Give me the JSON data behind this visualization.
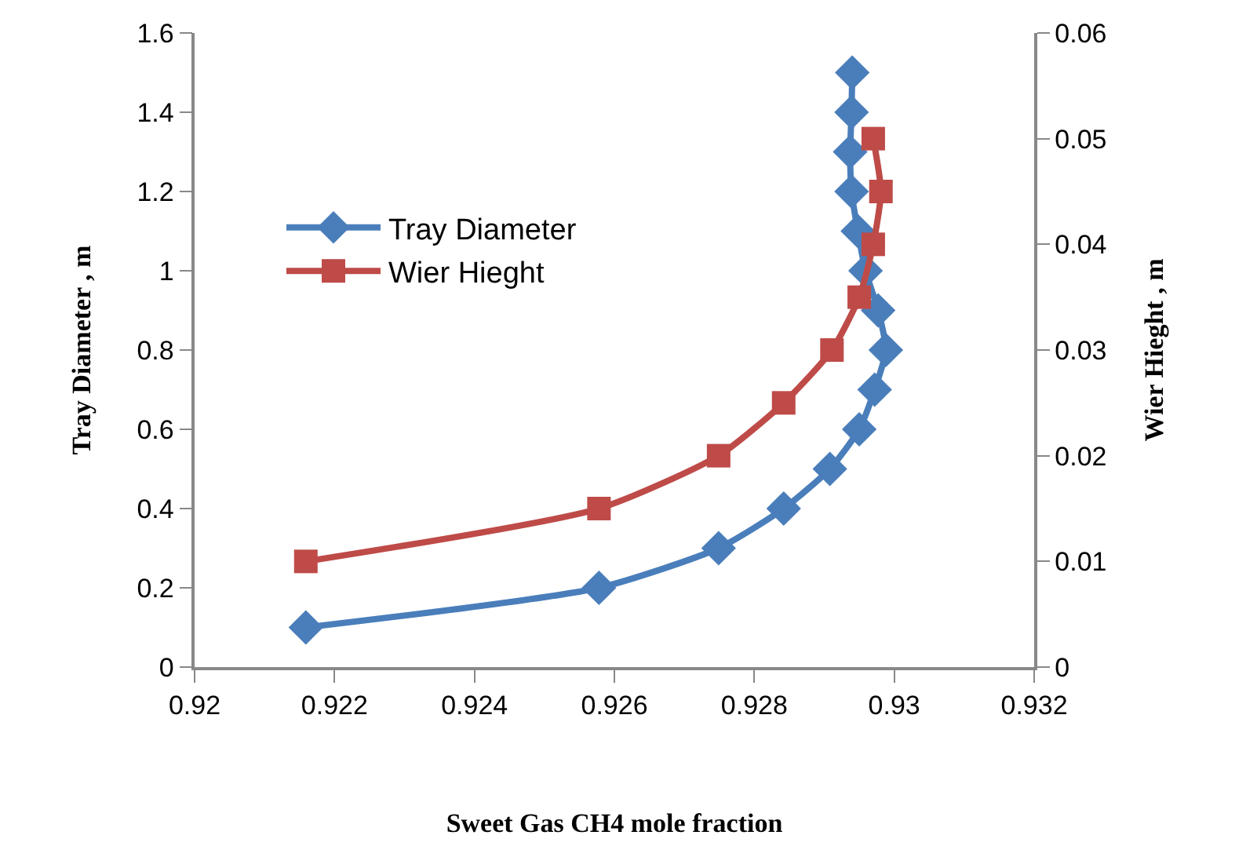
{
  "chart_data": {
    "type": "line",
    "xlabel": "Sweet Gas CH4 mole fraction",
    "ylabel": "Tray Diameter , m",
    "y2label": "Wier Hieght , m",
    "series": [
      {
        "name": "Tray Diameter",
        "color": "#4a7ebb",
        "x": [
          0.92159,
          0.92578,
          0.92749,
          0.92842,
          0.92908,
          0.9295,
          0.92972,
          0.92988,
          0.92977,
          0.92959,
          0.92948,
          0.92939,
          0.92937,
          0.92939,
          0.9294
        ],
        "values": [
          0.1,
          0.2,
          0.3,
          0.4,
          0.5,
          0.6,
          0.7,
          0.8,
          0.9,
          1.0,
          1.1,
          1.2,
          1.3,
          1.4,
          1.5
        ],
        "marker": "diamond"
      },
      {
        "name": "Wier Hieght",
        "color": "#be4b48",
        "axis": "y2",
        "x": [
          0.92159,
          0.92578,
          0.92749,
          0.92842,
          0.92911,
          0.9295,
          0.9297,
          0.92981,
          0.9297
        ],
        "values": [
          0.01,
          0.015,
          0.02,
          0.025,
          0.03,
          0.035,
          0.04,
          0.045,
          0.05
        ],
        "marker": "square"
      }
    ],
    "xlim": [
      0.92,
      0.932
    ],
    "xticks": [
      0.92,
      0.922,
      0.924,
      0.926,
      0.928,
      0.93,
      0.932
    ],
    "ylim": [
      0,
      1.6
    ],
    "yticks": [
      0,
      0.2,
      0.4,
      0.6,
      0.8,
      1,
      1.2,
      1.4,
      1.6
    ],
    "y2lim": [
      0,
      0.06
    ],
    "y2ticks": [
      0,
      0.01,
      0.02,
      0.03,
      0.04,
      0.05,
      0.06
    ],
    "legend": "top left",
    "line_style": "solid"
  }
}
